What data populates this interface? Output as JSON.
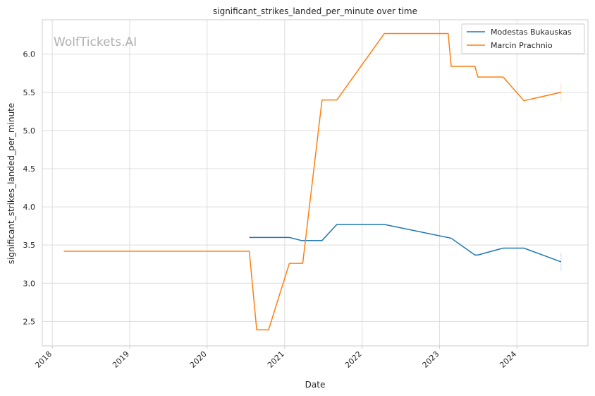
{
  "chart_data": {
    "type": "line",
    "title": "significant_strikes_landed_per_minute over time",
    "xlabel": "Date",
    "ylabel": "significant_strikes_landed_per_minute",
    "watermark": "WolfTickets.AI",
    "x_ticks": [
      "2018",
      "2019",
      "2020",
      "2021",
      "2022",
      "2023",
      "2024"
    ],
    "y_ticks": [
      "2.5",
      "3.0",
      "3.5",
      "4.0",
      "4.5",
      "5.0",
      "5.5",
      "6.0"
    ],
    "xlim": [
      "2017-11-15",
      "2024-12-01"
    ],
    "ylim": [
      2.18,
      6.45
    ],
    "grid": true,
    "legend_position": "top-right",
    "series": [
      {
        "name": "Modestas Bukauskas",
        "color": "#1f77b4",
        "points": [
          [
            "2020-07-18",
            3.6
          ],
          [
            "2021-01-23",
            3.6
          ],
          [
            "2021-03-20",
            3.56
          ],
          [
            "2021-06-26",
            3.56
          ],
          [
            "2021-09-04",
            3.77
          ],
          [
            "2022-04-16",
            3.77
          ],
          [
            "2023-02-25",
            3.59
          ],
          [
            "2023-06-17",
            3.37
          ],
          [
            "2023-07-01",
            3.37
          ],
          [
            "2023-10-28",
            3.46
          ],
          [
            "2024-02-03",
            3.46
          ],
          [
            "2024-07-27",
            3.28
          ]
        ]
      },
      {
        "name": "Marcin Prachnio",
        "color": "#ff7f0e",
        "points": [
          [
            "2018-02-24",
            3.42
          ],
          [
            "2020-07-18",
            3.42
          ],
          [
            "2020-08-22",
            2.39
          ],
          [
            "2020-10-17",
            2.39
          ],
          [
            "2021-01-23",
            3.26
          ],
          [
            "2021-03-27",
            3.26
          ],
          [
            "2021-06-26",
            5.4
          ],
          [
            "2021-09-04",
            5.4
          ],
          [
            "2022-04-16",
            6.27
          ],
          [
            "2023-02-11",
            6.27
          ],
          [
            "2023-02-25",
            5.84
          ],
          [
            "2023-06-17",
            5.84
          ],
          [
            "2023-07-01",
            5.7
          ],
          [
            "2023-10-28",
            5.7
          ],
          [
            "2024-02-03",
            5.39
          ],
          [
            "2024-07-27",
            5.5
          ]
        ]
      }
    ]
  }
}
